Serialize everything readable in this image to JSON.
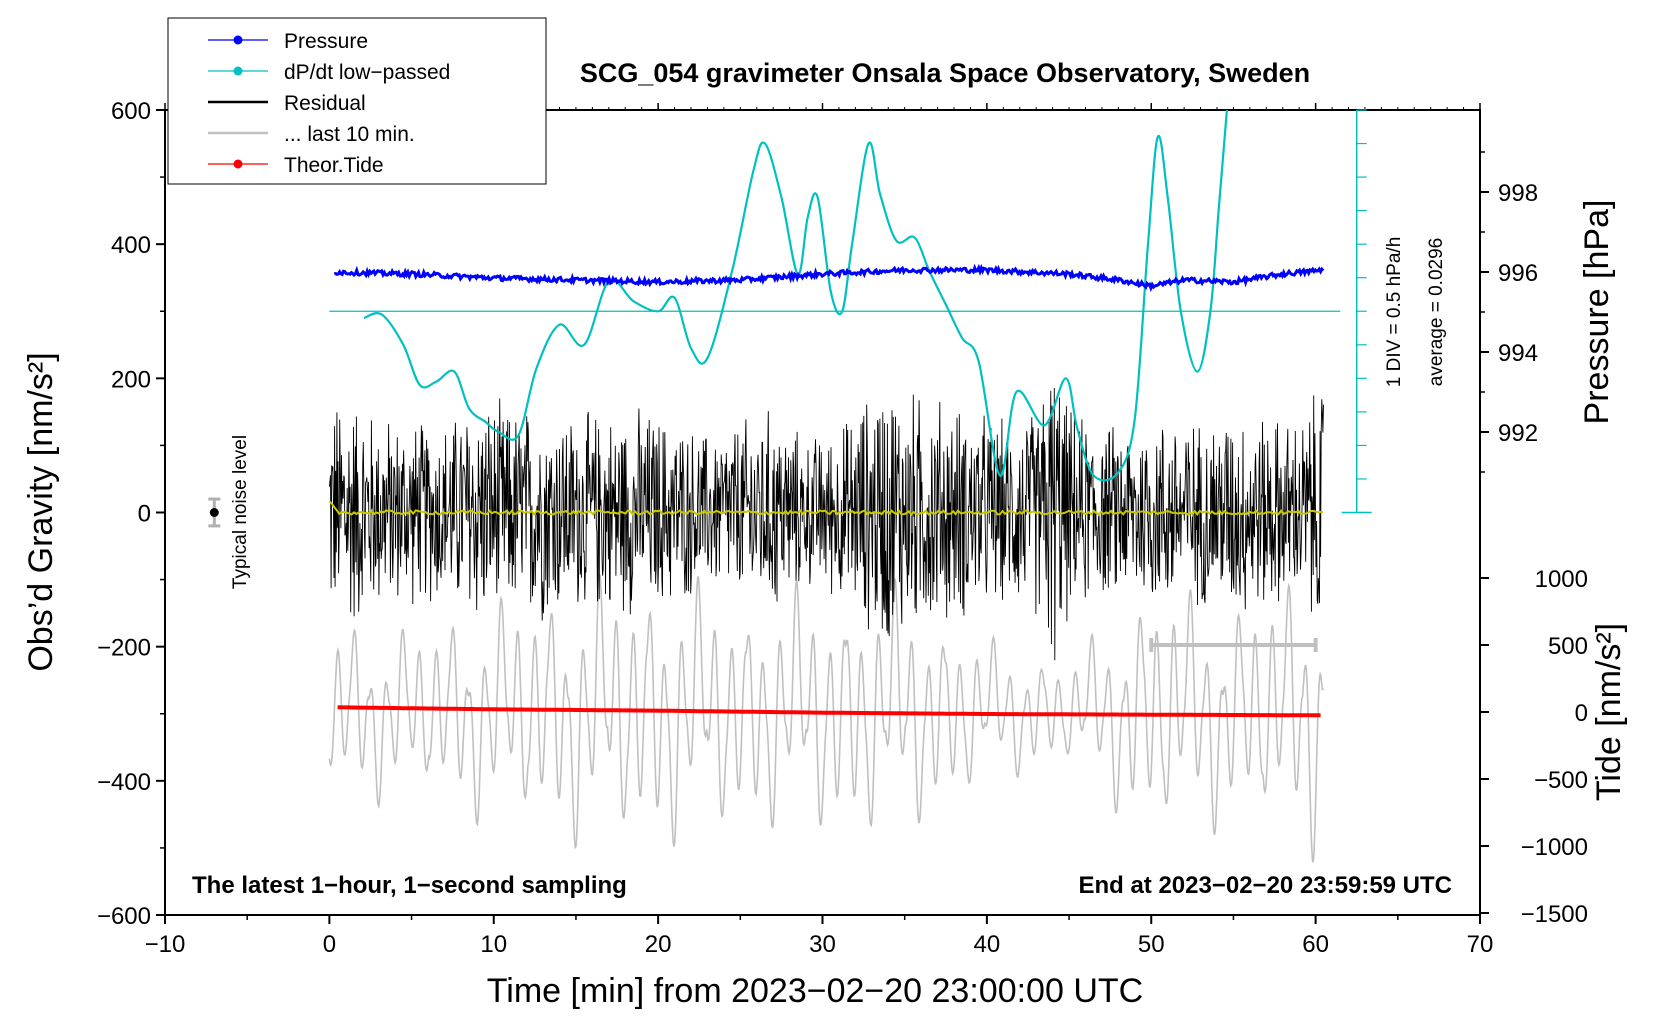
{
  "chart_data": {
    "type": "line",
    "title": "SCG_054 gravimeter Onsala Space Observatory, Sweden",
    "xlabel": "Time [min] from 2023−02−20 23:00:00 UTC",
    "ylabel_left": "Obs’d Gravity [nm/s²]",
    "ylabel_pressure": "Pressure [hPa]",
    "ylabel_tide": "Tide [nm/s²]",
    "xlim": [
      -10,
      70
    ],
    "ylim_left": [
      -600,
      600
    ],
    "pressure_ticks": [
      992,
      994,
      996,
      998
    ],
    "tide_ticks": [
      -1500,
      -1000,
      -500,
      0,
      500,
      1000
    ],
    "x_ticks": [
      -10,
      0,
      10,
      20,
      30,
      40,
      50,
      60,
      70
    ],
    "y_ticks": [
      -600,
      -400,
      -200,
      0,
      200,
      400,
      600
    ],
    "annotation_left": "The latest 1−hour, 1−second sampling",
    "annotation_right": "End at 2023−02−20 23:59:59 UTC",
    "noise_label": "Typical noise level",
    "dpdt_scale_label": "1 DIV = 0.5 hPa/h",
    "dpdt_average_label": "average = 0.0296",
    "legend": [
      {
        "label": "Pressure",
        "color": "#0000ff",
        "style": "line-dot"
      },
      {
        "label": "dP/dt low−passed",
        "color": "#00c0c0",
        "style": "line-dot"
      },
      {
        "label": "Residual",
        "color": "#000000",
        "style": "line"
      },
      {
        "label": "... last 10 min.",
        "color": "#c0c0c0",
        "style": "line"
      },
      {
        "label": "Theor.Tide",
        "color": "#ff0000",
        "style": "line-dot"
      }
    ],
    "series": [
      {
        "name": "dP/dt low-passed",
        "color": "#00c0c0",
        "x": [
          2.1,
          3.2,
          4.5,
          5.5,
          6.5,
          7.6,
          8.5,
          9.5,
          10.3,
          11.5,
          12.6,
          14.0,
          15.5,
          17.0,
          18.5,
          20.0,
          21.0,
          22.0,
          23.0,
          24.5,
          25.8,
          26.5,
          27.5,
          28.5,
          29.1,
          29.7,
          30.5,
          31.2,
          31.8,
          32.8,
          33.5,
          34.5,
          35.6,
          36.5,
          37.5,
          38.5,
          39.5,
          40.8,
          41.8,
          43.5,
          44.8,
          45.5,
          46.5,
          48.0,
          49.0,
          49.8,
          50.4,
          51.0,
          51.8,
          52.8,
          53.6,
          54.1,
          54.6
        ],
        "y": [
          290,
          295,
          250,
          190,
          195,
          210,
          155,
          135,
          120,
          115,
          215,
          280,
          250,
          345,
          315,
          300,
          320,
          245,
          230,
          360,
          510,
          550,
          470,
          355,
          440,
          470,
          330,
          300,
          400,
          550,
          475,
          405,
          410,
          360,
          310,
          260,
          225,
          55,
          180,
          130,
          200,
          125,
          55,
          60,
          140,
          400,
          560,
          470,
          300,
          210,
          300,
          450,
          600
        ]
      },
      {
        "name": "Pressure",
        "color": "#0000ff",
        "unit": "hPa",
        "x": [
          0,
          5,
          10,
          15,
          20,
          25,
          30,
          35,
          40,
          45,
          48,
          50,
          52,
          55,
          58,
          60.5
        ],
        "y": [
          996.0,
          995.95,
          995.85,
          995.8,
          995.75,
          995.8,
          995.95,
          996.05,
          996.05,
          995.95,
          995.8,
          995.65,
          995.8,
          995.75,
          995.95,
          996.05
        ]
      },
      {
        "name": "Residual",
        "color": "#000000",
        "x_range": [
          0,
          60.5
        ],
        "amplitude_envelope_x": [
          0,
          1,
          3,
          5,
          7,
          9,
          11,
          13,
          15,
          17,
          19,
          21,
          23,
          25,
          27,
          29,
          31,
          33,
          34,
          35,
          37,
          39,
          41,
          43,
          44,
          45,
          47,
          49,
          51,
          53,
          55,
          57,
          59,
          60.5
        ],
        "amplitude_envelope": [
          180,
          200,
          160,
          150,
          150,
          190,
          170,
          180,
          160,
          165,
          170,
          150,
          130,
          150,
          170,
          120,
          140,
          200,
          230,
          200,
          190,
          170,
          150,
          170,
          270,
          170,
          140,
          150,
          160,
          150,
          170,
          160,
          150,
          220
        ]
      },
      {
        "name": "Yellow mean",
        "color": "#c8c800",
        "x": [
          0,
          0.5,
          60.5
        ],
        "y": [
          15,
          0,
          0
        ]
      },
      {
        "name": "... last 10 min.",
        "color": "#c0c0c0",
        "unit": "nm/s² (tide axis)",
        "x_range": [
          0,
          60.5
        ],
        "amplitude_envelope_x": [
          0,
          5,
          10,
          15,
          20,
          25,
          30,
          35,
          40,
          45,
          50,
          55,
          60.5
        ],
        "amplitude_envelope": [
          700,
          650,
          850,
          1000,
          1050,
          900,
          950,
          950,
          550,
          400,
          1000,
          850,
          1100
        ]
      },
      {
        "name": "Theor.Tide",
        "color": "#ff0000",
        "unit": "nm/s² (tide axis)",
        "x": [
          0.5,
          10,
          20,
          30,
          40,
          50,
          60.5
        ],
        "y": [
          35,
          20,
          10,
          -5,
          -15,
          -20,
          -25
        ]
      }
    ],
    "noise_marker": {
      "x": -7,
      "y": 0,
      "error": 20
    },
    "last10_bar": {
      "x_start": 50,
      "x_end": 60,
      "tide_value": 500
    },
    "dpdt_baseline_y": 300
  }
}
